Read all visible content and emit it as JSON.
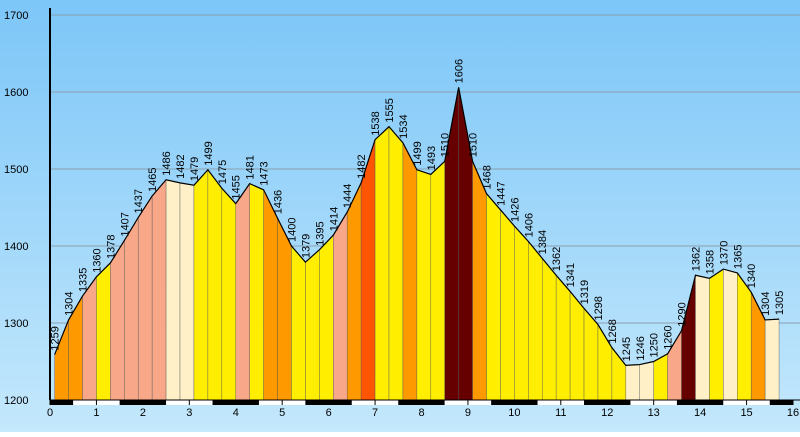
{
  "chart_data": {
    "type": "area",
    "x": [
      0.1,
      0.4,
      0.7,
      1.0,
      1.3,
      1.6,
      1.9,
      2.2,
      2.5,
      2.8,
      3.1,
      3.4,
      3.7,
      4.0,
      4.3,
      4.6,
      4.9,
      5.2,
      5.5,
      5.8,
      6.1,
      6.4,
      6.7,
      7.0,
      7.3,
      7.6,
      7.9,
      8.2,
      8.5,
      8.8,
      9.1,
      9.4,
      9.7,
      10.0,
      10.3,
      10.6,
      10.9,
      11.2,
      11.5,
      11.8,
      12.1,
      12.4,
      12.7,
      13.0,
      13.3,
      13.6,
      13.9,
      14.2,
      14.5,
      14.8,
      15.1,
      15.4,
      15.7
    ],
    "values": [
      1259,
      1304,
      1335,
      1360,
      1378,
      1407,
      1437,
      1465,
      1486,
      1482,
      1479,
      1499,
      1475,
      1455,
      1481,
      1473,
      1436,
      1400,
      1379,
      1395,
      1414,
      1444,
      1482,
      1538,
      1555,
      1534,
      1499,
      1493,
      1510,
      1606,
      1510,
      1468,
      1447,
      1426,
      1406,
      1384,
      1362,
      1341,
      1319,
      1298,
      1268,
      1245,
      1246,
      1250,
      1260,
      1290,
      1362,
      1358,
      1370,
      1365,
      1340,
      1304,
      1305
    ],
    "segment_colors": [
      "#ff9900",
      "#ff9900",
      "#f8a888",
      "#ffee00",
      "#f8a888",
      "#f8a888",
      "#f8a888",
      "#f8a888",
      "#fff0c8",
      "#fff0c8",
      "#ffee00",
      "#ffee00",
      "#ffee00",
      "#f8a888",
      "#ffee00",
      "#ff9900",
      "#ff9900",
      "#ffee00",
      "#ffee00",
      "#ffee00",
      "#f8a888",
      "#ff9900",
      "#ff5500",
      "#ffee00",
      "#ffee00",
      "#ff9900",
      "#ffee00",
      "#ffee00",
      "#660000",
      "#660000",
      "#ff9900",
      "#ffee00",
      "#ffee00",
      "#ffee00",
      "#ffee00",
      "#ffee00",
      "#ffee00",
      "#ffee00",
      "#ffee00",
      "#ffee00",
      "#ffee00",
      "#fff0c8",
      "#fff0c8",
      "#ffee00",
      "#f8a888",
      "#660000",
      "#fff0c8",
      "#ffee00",
      "#fff0c8",
      "#ffee00",
      "#ff9900",
      "#fff0c8"
    ],
    "line_color": "#000000",
    "xlim": [
      0,
      16
    ],
    "xticks": [
      0,
      1,
      2,
      3,
      4,
      5,
      6,
      7,
      8,
      9,
      10,
      11,
      12,
      13,
      14,
      15,
      16
    ],
    "ylim": [
      1200,
      1700
    ],
    "yticks": [
      1200,
      1300,
      1400,
      1500,
      1600,
      1700
    ],
    "grid": true
  }
}
